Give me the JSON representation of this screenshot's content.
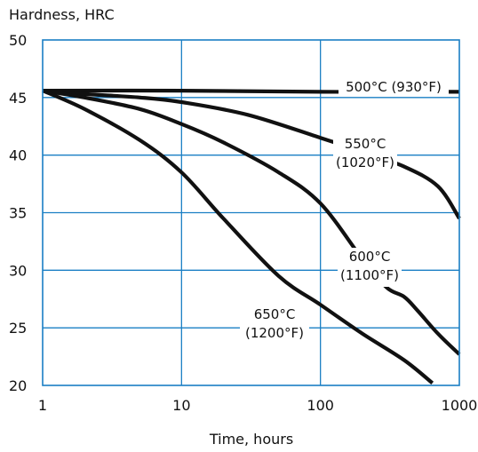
{
  "chart_data": {
    "type": "line",
    "ylabel": "Hardness, HRC",
    "xlabel": "Time, hours",
    "x_scale": "log",
    "xlim": [
      1,
      1000
    ],
    "ylim": [
      20,
      50
    ],
    "x_ticks": [
      1,
      10,
      100,
      1000
    ],
    "x_tick_labels": [
      "1",
      "10",
      "100",
      "1000"
    ],
    "y_ticks": [
      20,
      25,
      30,
      35,
      40,
      45,
      50
    ],
    "y_tick_labels": [
      "20",
      "25",
      "30",
      "35",
      "40",
      "45",
      "50"
    ],
    "grid": true,
    "colors": {
      "grid": "#1a7fc4",
      "series": "#111111"
    },
    "series": [
      {
        "name": "500°C (930°F)",
        "label_lines": [
          "500°C (930°F)"
        ],
        "x": [
          1,
          10,
          100,
          1000
        ],
        "y": [
          45.6,
          45.6,
          45.5,
          45.5
        ]
      },
      {
        "name": "550°C (1020°F)",
        "label_lines": [
          "550°C",
          "(1020°F)"
        ],
        "x": [
          1,
          2,
          5,
          10,
          30,
          100,
          200,
          400,
          700,
          1000
        ],
        "y": [
          45.6,
          45.3,
          45.0,
          44.6,
          43.5,
          41.5,
          40.3,
          39.0,
          37.3,
          34.5
        ]
      },
      {
        "name": "600°C (1100°F)",
        "label_lines": [
          "600°C",
          "(1100°F)"
        ],
        "x": [
          1,
          2,
          5,
          10,
          20,
          50,
          100,
          200,
          300,
          400,
          500,
          700,
          1000
        ],
        "y": [
          45.6,
          45.0,
          44.0,
          42.7,
          41.1,
          38.5,
          35.8,
          31.0,
          28.5,
          27.7,
          26.5,
          24.5,
          22.7
        ]
      },
      {
        "name": "650°C (1200°F)",
        "label_lines": [
          "650°C",
          "(1200°F)"
        ],
        "x": [
          1,
          2,
          5,
          10,
          20,
          50,
          100,
          200,
          400,
          640
        ],
        "y": [
          45.6,
          44.0,
          41.3,
          38.5,
          34.5,
          29.5,
          27.0,
          24.5,
          22.2,
          20.2
        ]
      }
    ]
  }
}
